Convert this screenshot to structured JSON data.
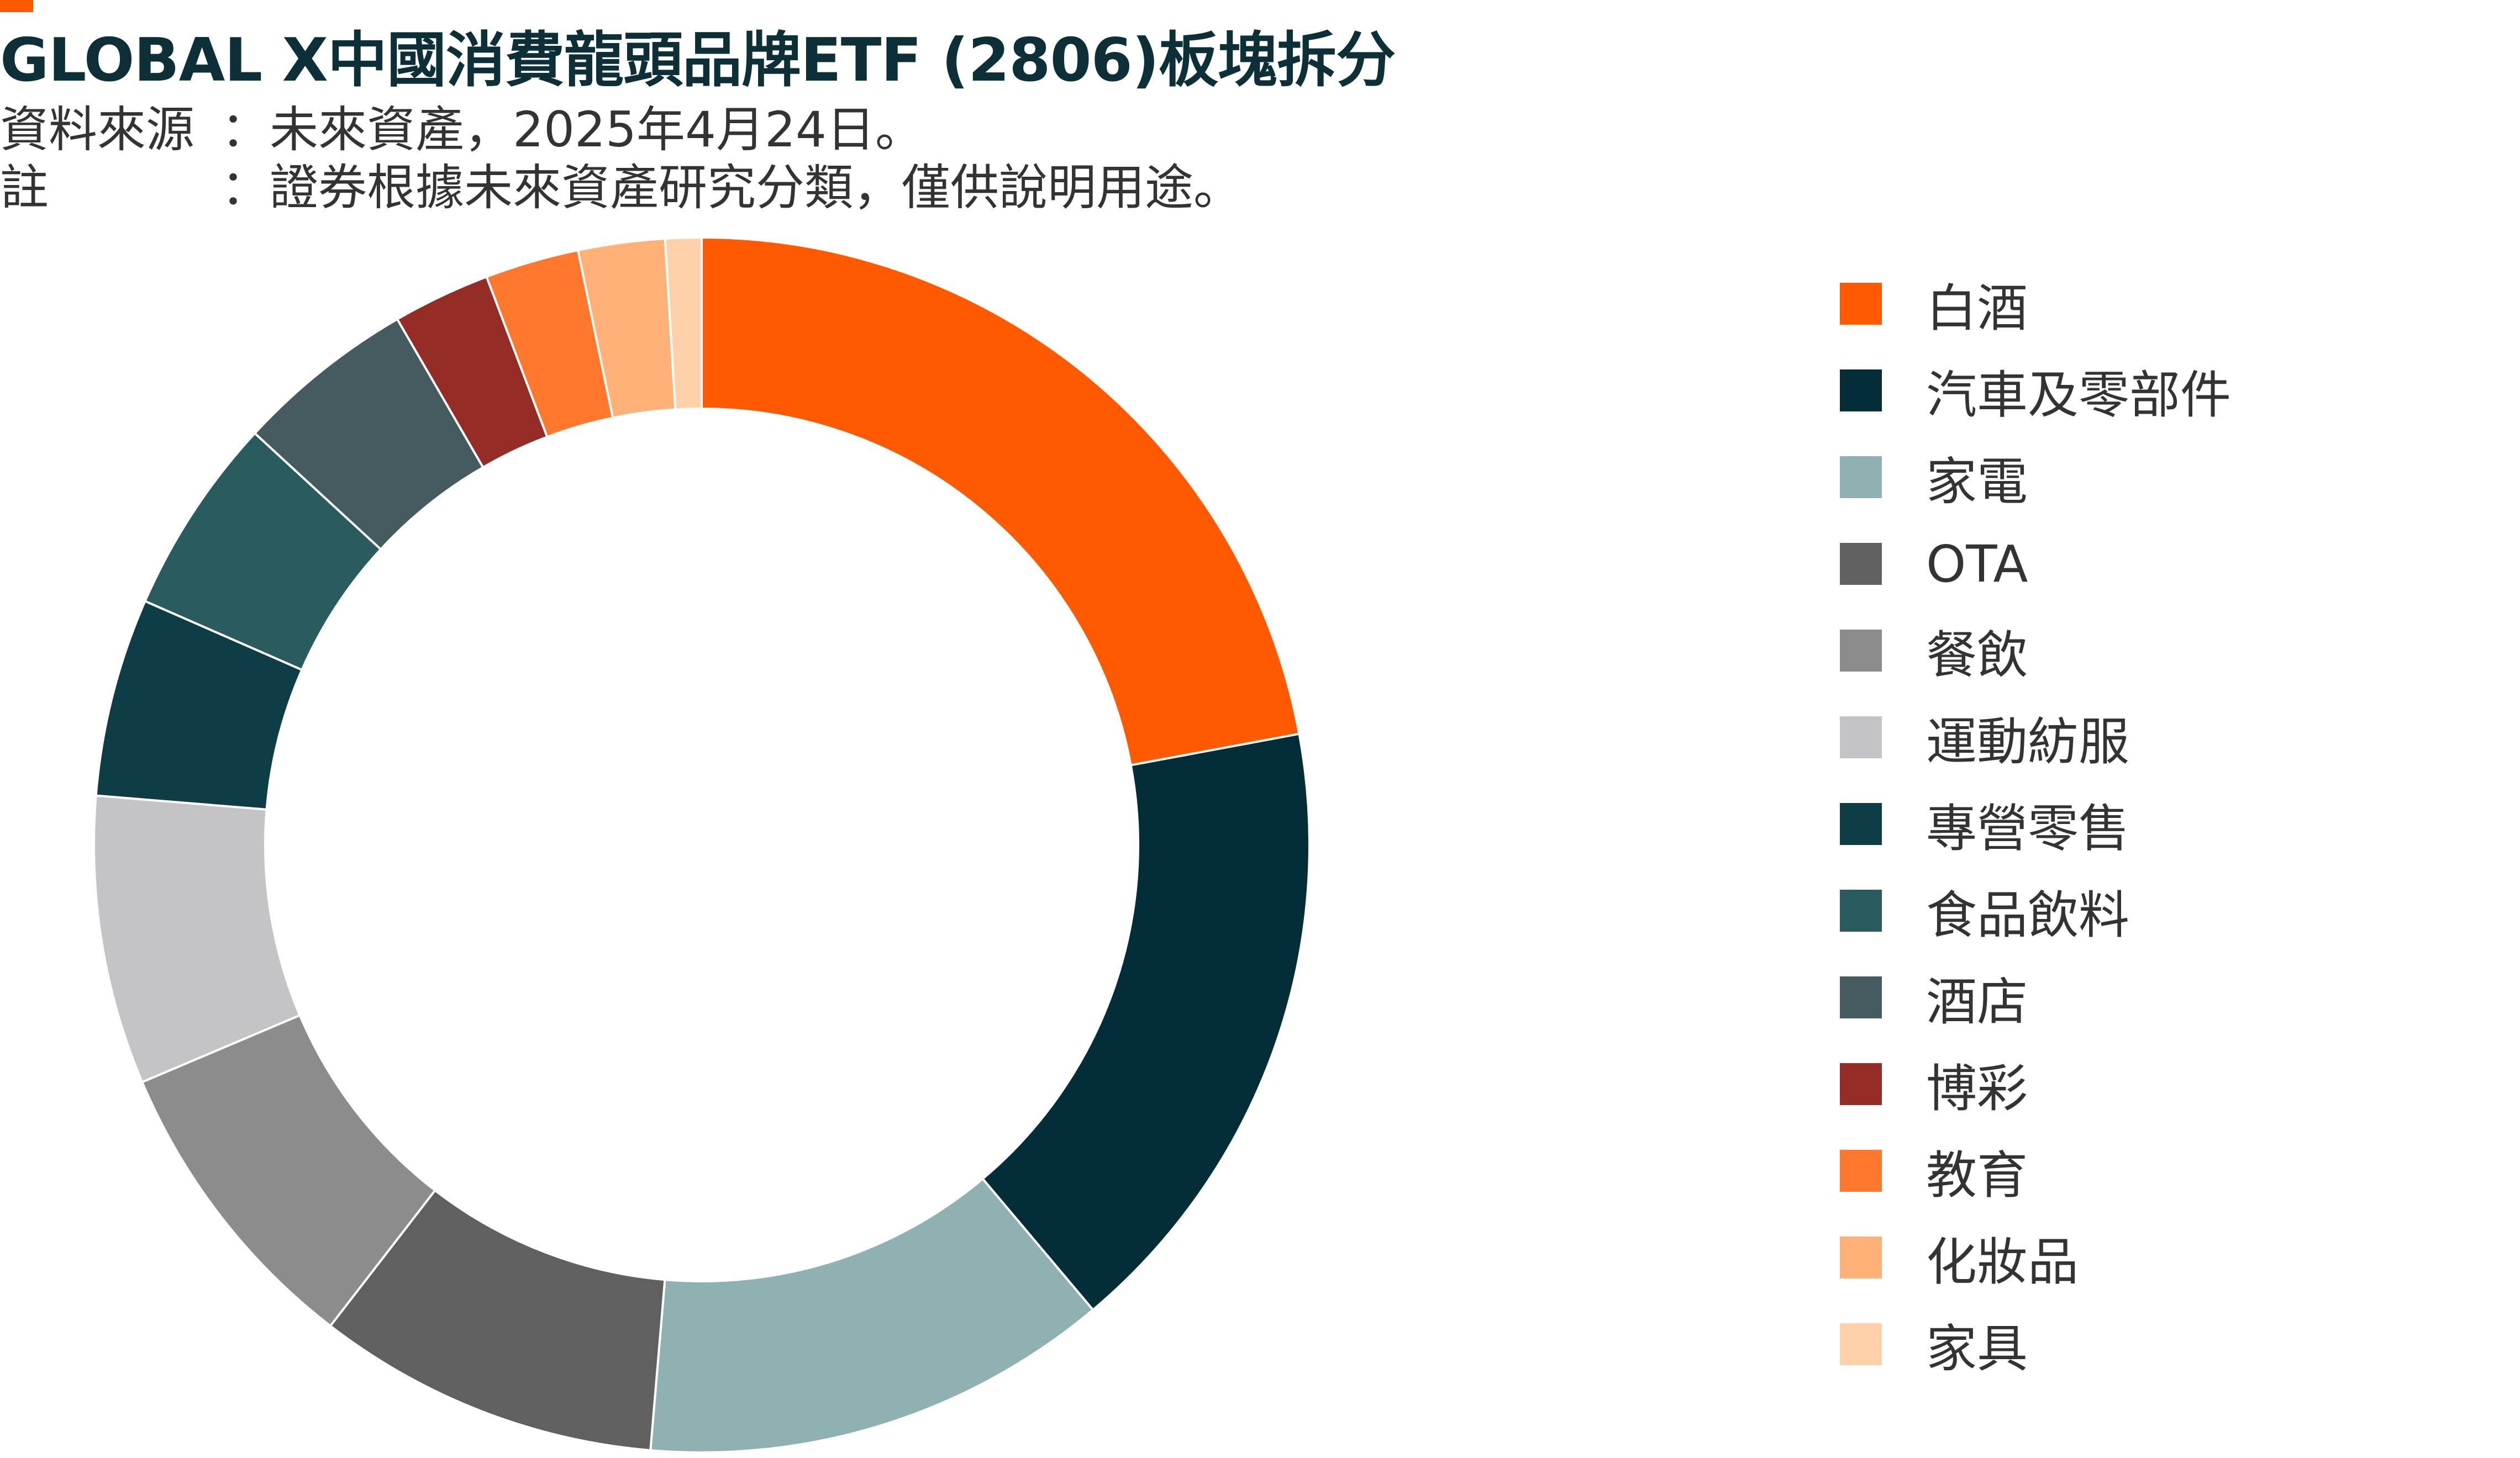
{
  "header": {
    "title": "GLOBAL X中國消費龍頭品牌ETF (2806)板塊拆分",
    "source_key": "資料來源",
    "source_value": "：未來資產，2025年4月24日。",
    "note_key": "註",
    "note_value": "：證券根據未來資產研究分類，僅供說明用途。"
  },
  "colors": {
    "accent": "#ff5a00",
    "title": "#0d3038"
  },
  "chart_data": {
    "type": "pie",
    "style": "donut",
    "legend_position": "right",
    "slices": [
      {
        "label": "白酒",
        "value": 23.0,
        "color": "#ff5a00"
      },
      {
        "label": "汽車及零部件",
        "value": 17.5,
        "color": "#032e38"
      },
      {
        "label": "家電",
        "value": 13.0,
        "color": "#8fb1b2"
      },
      {
        "label": "OTA",
        "value": 9.5,
        "color": "#606060"
      },
      {
        "label": "餐飲",
        "value": 8.5,
        "color": "#8c8c8c"
      },
      {
        "label": "運動紡服",
        "value": 8.0,
        "color": "#c4c4c6"
      },
      {
        "label": "專營零售",
        "value": 5.5,
        "color": "#0f3d45"
      },
      {
        "label": "食品飲料",
        "value": 5.5,
        "color": "#2a5b5e"
      },
      {
        "label": "酒店",
        "value": 5.0,
        "color": "#455b60"
      },
      {
        "label": "博彩",
        "value": 2.7,
        "color": "#952c25"
      },
      {
        "label": "教育",
        "value": 2.6,
        "color": "#ff782e"
      },
      {
        "label": "化妝品",
        "value": 2.4,
        "color": "#ffb178"
      },
      {
        "label": "家具",
        "value": 1.0,
        "color": "#ffd1aa"
      }
    ]
  }
}
